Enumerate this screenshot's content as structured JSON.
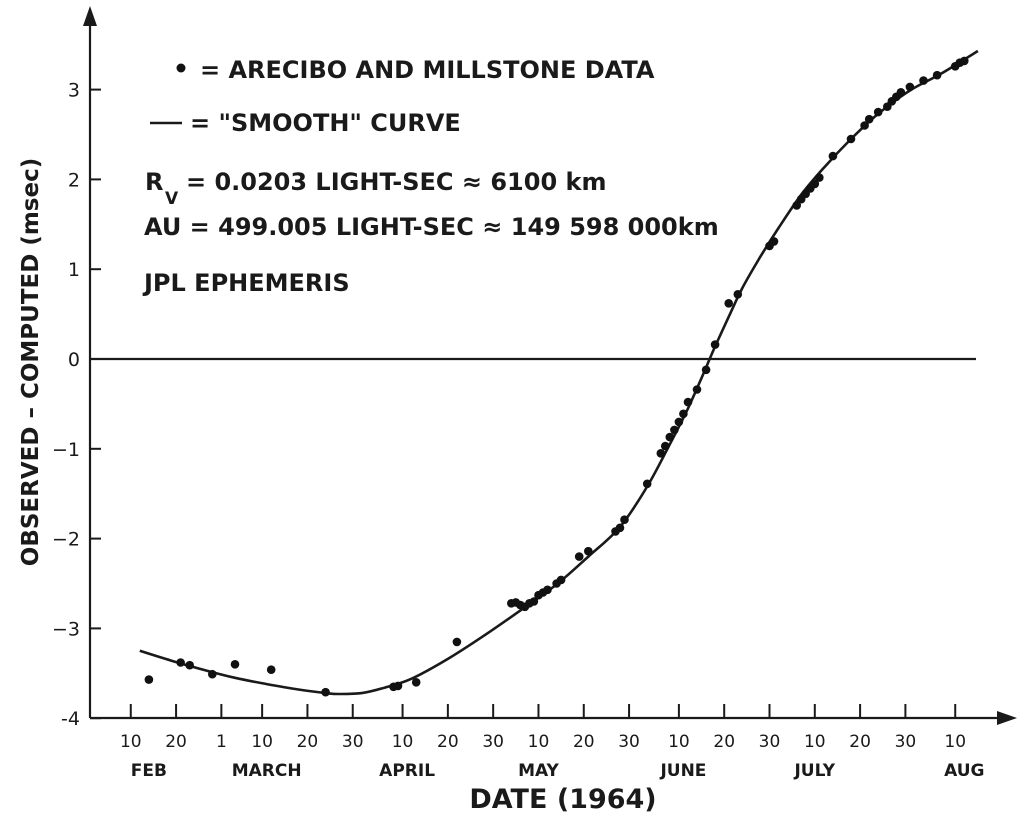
{
  "chart_data": {
    "type": "scatter",
    "xlabel": "DATE (1964)",
    "ylabel": "OBSERVED – COMPUTED (msec)",
    "x_axis_start": "1964-02-01",
    "xlim": [
      "1964-02-01",
      "1964-08-24"
    ],
    "ylim": [
      -4,
      3.8
    ],
    "yticks": [
      {
        "value": 3,
        "label": "3"
      },
      {
        "value": 2,
        "label": "2"
      },
      {
        "value": 1,
        "label": "1"
      },
      {
        "value": 0,
        "label": "0"
      },
      {
        "value": -1,
        "label": "−1"
      },
      {
        "value": -2,
        "label": "−2"
      },
      {
        "value": -3,
        "label": "−3"
      },
      {
        "value": -4,
        "label": "-4"
      }
    ],
    "xticks": [
      {
        "date": "1964-02-10",
        "label": "10"
      },
      {
        "date": "1964-02-20",
        "label": "20"
      },
      {
        "date": "1964-03-01",
        "label": "1"
      },
      {
        "date": "1964-03-10",
        "label": "10"
      },
      {
        "date": "1964-03-20",
        "label": "20"
      },
      {
        "date": "1964-03-30",
        "label": "30"
      },
      {
        "date": "1964-04-10",
        "label": "10"
      },
      {
        "date": "1964-04-20",
        "label": "20"
      },
      {
        "date": "1964-04-30",
        "label": "30"
      },
      {
        "date": "1964-05-10",
        "label": "10"
      },
      {
        "date": "1964-05-20",
        "label": "20"
      },
      {
        "date": "1964-05-30",
        "label": "30"
      },
      {
        "date": "1964-06-10",
        "label": "10"
      },
      {
        "date": "1964-06-20",
        "label": "20"
      },
      {
        "date": "1964-06-30",
        "label": "30"
      },
      {
        "date": "1964-07-10",
        "label": "10"
      },
      {
        "date": "1964-07-20",
        "label": "20"
      },
      {
        "date": "1964-07-30",
        "label": "30"
      },
      {
        "date": "1964-08-10",
        "label": "10"
      }
    ],
    "months": [
      {
        "date": "1964-02-14",
        "label": "FEB"
      },
      {
        "date": "1964-03-11",
        "label": "MARCH"
      },
      {
        "date": "1964-04-11",
        "label": "APRIL"
      },
      {
        "date": "1964-05-10",
        "label": "MAY"
      },
      {
        "date": "1964-06-11",
        "label": "JUNE"
      },
      {
        "date": "1964-07-10",
        "label": "JULY"
      },
      {
        "date": "1964-08-12",
        "label": "AUG"
      }
    ],
    "legend": {
      "points_label": "= ARECIBO AND MILLSTONE DATA",
      "curve_label": "= \"SMOOTH\" CURVE",
      "rv_symbol": "R",
      "rv_subscript": "V",
      "rv_text": "= 0.0203 LIGHT-SEC ≈ 6100 km",
      "au_text": "AU = 499.005 LIGHT-SEC ≈ 149 598 000km",
      "ephemeris_text": "JPL EPHEMERIS"
    },
    "series": [
      {
        "kind": "points",
        "data": [
          [
            "1964-02-14",
            -3.57
          ],
          [
            "1964-02-21",
            -3.38
          ],
          [
            "1964-02-23",
            -3.41
          ],
          [
            "1964-02-28",
            -3.51
          ],
          [
            "1964-03-04",
            -3.4
          ],
          [
            "1964-03-12",
            -3.46
          ],
          [
            "1964-03-24",
            -3.71
          ],
          [
            "1964-04-08",
            -3.65
          ],
          [
            "1964-04-09",
            -3.64
          ],
          [
            "1964-04-13",
            -3.6
          ],
          [
            "1964-04-22",
            -3.15
          ],
          [
            "1964-05-04",
            -2.72
          ],
          [
            "1964-05-05",
            -2.71
          ],
          [
            "1964-05-06",
            -2.74
          ],
          [
            "1964-05-07",
            -2.76
          ],
          [
            "1964-05-08",
            -2.72
          ],
          [
            "1964-05-09",
            -2.7
          ],
          [
            "1964-05-10",
            -2.63
          ],
          [
            "1964-05-11",
            -2.6
          ],
          [
            "1964-05-12",
            -2.57
          ],
          [
            "1964-05-14",
            -2.5
          ],
          [
            "1964-05-15",
            -2.46
          ],
          [
            "1964-05-19",
            -2.2
          ],
          [
            "1964-05-21",
            -2.14
          ],
          [
            "1964-05-27",
            -1.92
          ],
          [
            "1964-05-28",
            -1.88
          ],
          [
            "1964-05-29",
            -1.79
          ],
          [
            "1964-06-03",
            -1.39
          ],
          [
            "1964-06-06",
            -1.05
          ],
          [
            "1964-06-07",
            -0.97
          ],
          [
            "1964-06-08",
            -0.87
          ],
          [
            "1964-06-09",
            -0.79
          ],
          [
            "1964-06-10",
            -0.7
          ],
          [
            "1964-06-11",
            -0.61
          ],
          [
            "1964-06-12",
            -0.48
          ],
          [
            "1964-06-14",
            -0.34
          ],
          [
            "1964-06-16",
            -0.12
          ],
          [
            "1964-06-18",
            0.16
          ],
          [
            "1964-06-21",
            0.62
          ],
          [
            "1964-06-23",
            0.72
          ],
          [
            "1964-06-30",
            1.26
          ],
          [
            "1964-07-01",
            1.31
          ],
          [
            "1964-07-06",
            1.71
          ],
          [
            "1964-07-07",
            1.78
          ],
          [
            "1964-07-08",
            1.84
          ],
          [
            "1964-07-09",
            1.9
          ],
          [
            "1964-07-10",
            1.95
          ],
          [
            "1964-07-11",
            2.02
          ],
          [
            "1964-07-14",
            2.26
          ],
          [
            "1964-07-18",
            2.45
          ],
          [
            "1964-07-21",
            2.6
          ],
          [
            "1964-07-22",
            2.67
          ],
          [
            "1964-07-24",
            2.75
          ],
          [
            "1964-07-26",
            2.81
          ],
          [
            "1964-07-27",
            2.87
          ],
          [
            "1964-07-28",
            2.92
          ],
          [
            "1964-07-29",
            2.97
          ],
          [
            "1964-07-31",
            3.03
          ],
          [
            "1964-08-03",
            3.1
          ],
          [
            "1964-08-06",
            3.16
          ],
          [
            "1964-08-10",
            3.26
          ],
          [
            "1964-08-11",
            3.3
          ],
          [
            "1964-08-12",
            3.32
          ]
        ]
      },
      {
        "kind": "curve",
        "data": [
          [
            "1964-02-12",
            -3.25
          ],
          [
            "1964-02-19",
            -3.36
          ],
          [
            "1964-02-26",
            -3.46
          ],
          [
            "1964-03-04",
            -3.55
          ],
          [
            "1964-03-11",
            -3.62
          ],
          [
            "1964-03-18",
            -3.68
          ],
          [
            "1964-03-24",
            -3.72
          ],
          [
            "1964-03-27",
            -3.73
          ],
          [
            "1964-04-01",
            -3.72
          ],
          [
            "1964-04-06",
            -3.66
          ],
          [
            "1964-04-12",
            -3.56
          ],
          [
            "1964-04-20",
            -3.34
          ],
          [
            "1964-04-28",
            -3.08
          ],
          [
            "1964-05-06",
            -2.8
          ],
          [
            "1964-05-14",
            -2.51
          ],
          [
            "1964-05-21",
            -2.2
          ],
          [
            "1964-05-28",
            -1.87
          ],
          [
            "1964-06-03",
            -1.42
          ],
          [
            "1964-06-08",
            -0.95
          ],
          [
            "1964-06-12",
            -0.55
          ],
          [
            "1964-06-15",
            -0.21
          ],
          [
            "1964-06-18",
            0.14
          ],
          [
            "1964-06-21",
            0.47
          ],
          [
            "1964-06-24",
            0.79
          ],
          [
            "1964-06-28",
            1.14
          ],
          [
            "1964-07-02",
            1.46
          ],
          [
            "1964-07-07",
            1.83
          ],
          [
            "1964-07-12",
            2.13
          ],
          [
            "1964-07-18",
            2.45
          ],
          [
            "1964-07-24",
            2.73
          ],
          [
            "1964-07-31",
            2.99
          ],
          [
            "1964-08-07",
            3.18
          ],
          [
            "1964-08-15",
            3.43
          ]
        ]
      }
    ]
  }
}
